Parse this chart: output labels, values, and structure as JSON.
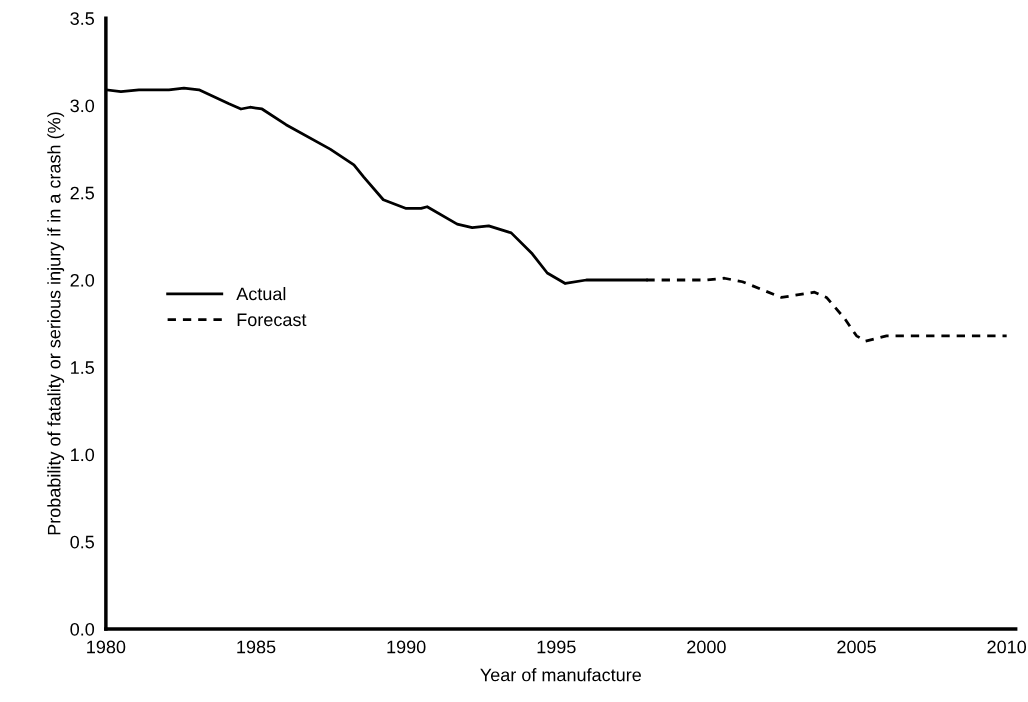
{
  "chart_data": {
    "type": "line",
    "xlabel": "Year of manufacture",
    "ylabel": "Probability of fatality or serious injury if in a crash (%)",
    "xlim": [
      1980,
      2010.3
    ],
    "xticks": [
      1980,
      1985,
      1990,
      1995,
      2000,
      2005,
      2010
    ],
    "ylim": [
      0,
      3.5
    ],
    "yticks": [
      {
        "value": 0,
        "label": "0.0"
      },
      0.5,
      {
        "value": 1,
        "label": "1.0"
      },
      1.5,
      {
        "value": 2,
        "label": "2.0"
      },
      2.5,
      {
        "value": 3,
        "label": "3.0"
      },
      3.5
    ],
    "grid": false,
    "legend": "center left",
    "marker": "none",
    "series": [
      {
        "name": "Actual",
        "color": "#000000",
        "line_style": "solid",
        "x": [
          1980,
          1980.5,
          1981.1,
          1982.1,
          1982.6,
          1983.1,
          1983.6,
          1984.1,
          1984.5,
          1984.8,
          1985.2,
          1986.0,
          1987.47,
          1988.26,
          1988.59,
          1989.24,
          1990.0,
          1990.5,
          1990.7,
          1991.7,
          1992.2,
          1992.75,
          1993.5,
          1994.2,
          1994.7,
          1995.3,
          1996.0,
          1998.0
        ],
        "values": [
          3.09,
          3.08,
          3.09,
          3.09,
          3.1,
          3.09,
          3.05,
          3.01,
          2.98,
          2.99,
          2.98,
          2.89,
          2.75,
          2.66,
          2.59,
          2.46,
          2.41,
          2.41,
          2.42,
          2.32,
          2.3,
          2.31,
          2.27,
          2.15,
          2.04,
          1.98,
          2.0,
          2.0
        ]
      },
      {
        "name": "Forecast",
        "color": "#000000",
        "line_style": "dashed",
        "x": [
          1998.0,
          2000.0,
          2000.6,
          2001.2,
          2002.5,
          2003.6,
          2004.0,
          2004.6,
          2005.0,
          2005.3,
          2006.0,
          2010.0
        ],
        "values": [
          2.0,
          2.0,
          2.01,
          1.99,
          1.9,
          1.93,
          1.9,
          1.78,
          1.68,
          1.65,
          1.68,
          1.68
        ]
      }
    ]
  }
}
